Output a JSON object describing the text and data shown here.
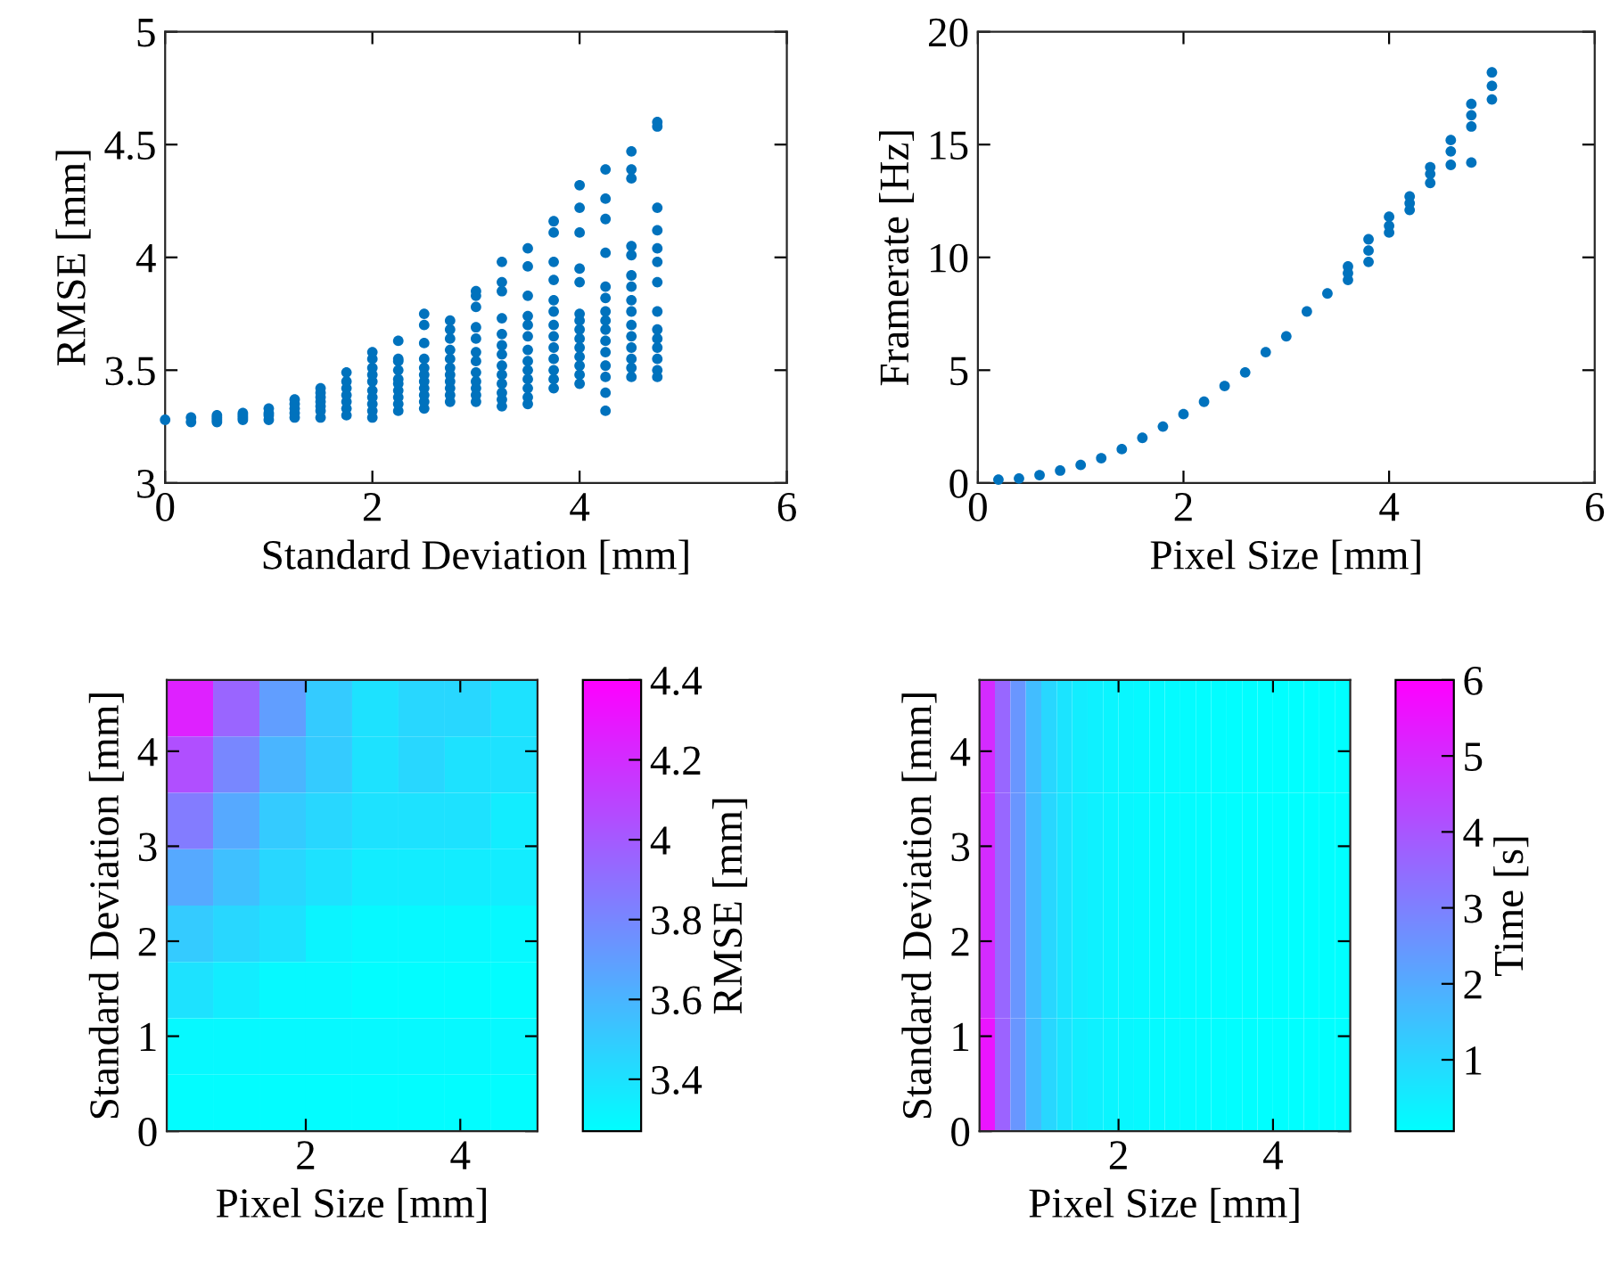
{
  "chart_data": [
    {
      "type": "scatter",
      "xlabel": "Standard Deviation [mm]",
      "ylabel": "RMSE [mm]",
      "color": "#0072bd",
      "marker": "circle",
      "xlim": [
        0,
        6
      ],
      "ylim": [
        3,
        5
      ],
      "xticks": [
        0,
        2,
        4,
        6
      ],
      "yticks": [
        3,
        3.5,
        4,
        {
          "value": 4.5,
          "label": "4.5"
        },
        5
      ],
      "x": [
        0,
        0.25,
        0.25,
        0.5,
        0.5,
        0.5,
        0.5,
        0.75,
        0.75,
        0.75,
        0.75,
        1,
        1,
        1,
        1,
        1.25,
        1.25,
        1.25,
        1.25,
        1.25,
        1.5,
        1.5,
        1.5,
        1.5,
        1.5,
        1.5,
        1.5,
        1.75,
        1.75,
        1.75,
        1.75,
        1.75,
        1.75,
        1.75,
        2,
        2,
        2,
        2,
        2,
        2,
        2,
        2,
        2,
        2,
        2.25,
        2.25,
        2.25,
        2.25,
        2.25,
        2.25,
        2.25,
        2.25,
        2.25,
        2.25,
        2.5,
        2.5,
        2.5,
        2.5,
        2.5,
        2.5,
        2.5,
        2.5,
        2.5,
        2.5,
        2.5,
        2.75,
        2.75,
        2.75,
        2.75,
        2.75,
        2.75,
        2.75,
        2.75,
        2.75,
        2.75,
        2.75,
        3,
        3,
        3,
        3,
        3,
        3,
        3,
        3,
        3,
        3,
        3,
        3,
        3.25,
        3.25,
        3.25,
        3.25,
        3.25,
        3.25,
        3.25,
        3.25,
        3.25,
        3.25,
        3.25,
        3.25,
        3.25,
        3.5,
        3.5,
        3.5,
        3.5,
        3.5,
        3.5,
        3.5,
        3.5,
        3.5,
        3.5,
        3.5,
        3.5,
        3.5,
        3.75,
        3.75,
        3.75,
        3.75,
        3.75,
        3.75,
        3.75,
        3.75,
        3.75,
        3.75,
        3.75,
        3.75,
        3.75,
        4,
        4,
        4,
        4,
        4,
        4,
        4,
        4,
        4,
        4,
        4,
        4,
        4,
        4,
        4.25,
        4.25,
        4.25,
        4.25,
        4.25,
        4.25,
        4.25,
        4.25,
        4.25,
        4.25,
        4.25,
        4.25,
        4.25,
        4.25,
        4.25,
        4.5,
        4.5,
        4.5,
        4.5,
        4.5,
        4.5,
        4.5,
        4.5,
        4.5,
        4.5,
        4.5,
        4.5,
        4.5,
        4.5,
        4.5,
        4.75,
        4.75,
        4.75,
        4.75,
        4.75,
        4.75,
        4.75,
        4.75,
        4.75,
        4.75,
        4.75,
        4.75,
        4.75,
        4.75
      ],
      "values": [
        3.28,
        3.27,
        3.29,
        3.27,
        3.28,
        3.29,
        3.3,
        3.28,
        3.29,
        3.3,
        3.31,
        3.28,
        3.3,
        3.31,
        3.33,
        3.29,
        3.31,
        3.33,
        3.35,
        3.37,
        3.29,
        3.32,
        3.34,
        3.36,
        3.38,
        3.4,
        3.42,
        3.3,
        3.33,
        3.36,
        3.39,
        3.42,
        3.45,
        3.49,
        3.29,
        3.32,
        3.35,
        3.38,
        3.41,
        3.45,
        3.48,
        3.51,
        3.55,
        3.58,
        3.32,
        3.35,
        3.38,
        3.41,
        3.44,
        3.46,
        3.5,
        3.54,
        3.55,
        3.63,
        3.33,
        3.36,
        3.39,
        3.42,
        3.45,
        3.48,
        3.51,
        3.55,
        3.62,
        3.7,
        3.75,
        3.36,
        3.39,
        3.42,
        3.45,
        3.48,
        3.51,
        3.55,
        3.59,
        3.64,
        3.68,
        3.72,
        3.36,
        3.39,
        3.42,
        3.45,
        3.49,
        3.54,
        3.58,
        3.64,
        3.69,
        3.78,
        3.83,
        3.85,
        3.34,
        3.37,
        3.4,
        3.44,
        3.48,
        3.52,
        3.57,
        3.61,
        3.66,
        3.73,
        3.85,
        3.89,
        3.98,
        3.35,
        3.38,
        3.42,
        3.46,
        3.5,
        3.54,
        3.59,
        3.65,
        3.7,
        3.74,
        3.83,
        3.96,
        4.04,
        3.42,
        3.46,
        3.5,
        3.55,
        3.6,
        3.65,
        3.7,
        3.76,
        3.81,
        3.9,
        3.98,
        4.11,
        4.16,
        3.44,
        3.48,
        3.52,
        3.56,
        3.6,
        3.64,
        3.68,
        3.72,
        3.75,
        3.89,
        3.95,
        4.11,
        4.22,
        4.32,
        3.32,
        3.4,
        3.47,
        3.52,
        3.58,
        3.63,
        3.68,
        3.72,
        3.76,
        3.82,
        3.87,
        4.02,
        4.17,
        4.26,
        4.39,
        3.47,
        3.51,
        3.55,
        3.6,
        3.65,
        3.7,
        3.76,
        3.81,
        3.87,
        3.92,
        4.01,
        4.05,
        4.35,
        4.39,
        4.47,
        3.47,
        3.5,
        3.55,
        3.6,
        3.64,
        3.68,
        3.76,
        3.89,
        3.98,
        4.04,
        4.12,
        4.22,
        4.58,
        4.6
      ]
    },
    {
      "type": "scatter",
      "xlabel": "Pixel Size [mm]",
      "ylabel": "Framerate [Hz]",
      "color": "#0072bd",
      "marker": "circle",
      "xlim": [
        0,
        6
      ],
      "ylim": [
        0,
        20
      ],
      "xticks": [
        0,
        2,
        4,
        6
      ],
      "yticks": [
        0,
        5,
        10,
        15,
        20
      ],
      "x": [
        0.2,
        0.4,
        0.6,
        0.8,
        1,
        1.2,
        1.4,
        1.6,
        1.8,
        2,
        2.2,
        2.4,
        2.6,
        2.8,
        3,
        3.2,
        3.4,
        3.6,
        3.6,
        3.6,
        3.8,
        3.8,
        3.8,
        4,
        4,
        4,
        4.2,
        4.2,
        4.2,
        4.4,
        4.4,
        4.4,
        4.6,
        4.6,
        4.6,
        4.8,
        4.8,
        4.8,
        4.8,
        5,
        5,
        5
      ],
      "values": [
        0.15,
        0.2,
        0.35,
        0.55,
        0.8,
        1.1,
        1.5,
        2,
        2.5,
        3.05,
        3.6,
        4.3,
        4.9,
        5.8,
        6.5,
        7.6,
        8.4,
        9,
        9.3,
        9.6,
        9.8,
        10.3,
        10.8,
        11.1,
        11.4,
        11.8,
        12.1,
        12.4,
        12.7,
        13.3,
        13.7,
        14,
        14.1,
        14.7,
        15.2,
        14.2,
        15.8,
        16.3,
        16.8,
        17,
        17.6,
        18.2
      ]
    },
    {
      "type": "heatmap",
      "xlabel": "Pixel Size [mm]",
      "ylabel": "Standard Deviation [mm]",
      "clabel": "RMSE [mm]",
      "xlim": [
        0.2,
        5
      ],
      "ylim": [
        0,
        4.75
      ],
      "xticks": [
        2,
        4
      ],
      "yticks": [
        0,
        1,
        2,
        3,
        4
      ],
      "clim": [
        3.27,
        4.4
      ],
      "cticks": [
        3.4,
        3.6,
        3.8,
        4,
        4.2,
        4.4
      ],
      "cells": [
        [
          4.25,
          3.95,
          3.7,
          3.5,
          3.4,
          3.45,
          3.45,
          3.4
        ],
        [
          4.05,
          3.8,
          3.6,
          3.5,
          3.4,
          3.45,
          3.4,
          3.4
        ],
        [
          3.85,
          3.65,
          3.5,
          3.45,
          3.4,
          3.4,
          3.4,
          3.35
        ],
        [
          3.65,
          3.55,
          3.45,
          3.4,
          3.35,
          3.35,
          3.35,
          3.35
        ],
        [
          3.5,
          3.45,
          3.4,
          3.32,
          3.3,
          3.3,
          3.3,
          3.3
        ],
        [
          3.4,
          3.35,
          3.3,
          3.3,
          3.28,
          3.28,
          3.28,
          3.28
        ],
        [
          3.3,
          3.3,
          3.3,
          3.3,
          3.3,
          3.3,
          3.3,
          3.3
        ],
        [
          3.28,
          3.28,
          3.28,
          3.28,
          3.28,
          3.28,
          3.28,
          3.28
        ]
      ]
    },
    {
      "type": "heatmap",
      "xlabel": "Pixel Size [mm]",
      "ylabel": "Standard Deviation [mm]",
      "clabel": "Time [s]",
      "xlim": [
        0.2,
        5
      ],
      "ylim": [
        0,
        4.75
      ],
      "xticks": [
        2,
        4
      ],
      "yticks": [
        0,
        1,
        2,
        3,
        4
      ],
      "clim": [
        0.06,
        6
      ],
      "cticks": [
        1,
        2,
        3,
        4,
        5,
        6
      ],
      "cells": [
        [
          5,
          3.6,
          2.5,
          1.6,
          1,
          0.7,
          0.5,
          0.4,
          0.3,
          0.25,
          0.2,
          0.18,
          0.16,
          0.14,
          0.12,
          0.11,
          0.1,
          0.09,
          0.08,
          0.08,
          0.07,
          0.07,
          0.06,
          0.06
        ],
        [
          5,
          3.6,
          2.5,
          1.6,
          1,
          0.7,
          0.5,
          0.4,
          0.3,
          0.25,
          0.2,
          0.18,
          0.16,
          0.14,
          0.12,
          0.11,
          0.1,
          0.09,
          0.08,
          0.08,
          0.07,
          0.07,
          0.06,
          0.06
        ],
        [
          5,
          3.6,
          2.5,
          1.6,
          1,
          0.7,
          0.5,
          0.4,
          0.3,
          0.25,
          0.2,
          0.18,
          0.16,
          0.14,
          0.12,
          0.11,
          0.1,
          0.09,
          0.08,
          0.08,
          0.07,
          0.07,
          0.06,
          0.06
        ],
        [
          5.5,
          3.7,
          2.5,
          1.6,
          1,
          0.7,
          0.5,
          0.4,
          0.3,
          0.25,
          0.2,
          0.18,
          0.16,
          0.14,
          0.12,
          0.11,
          0.1,
          0.09,
          0.08,
          0.08,
          0.07,
          0.07,
          0.06,
          0.06
        ]
      ]
    }
  ]
}
